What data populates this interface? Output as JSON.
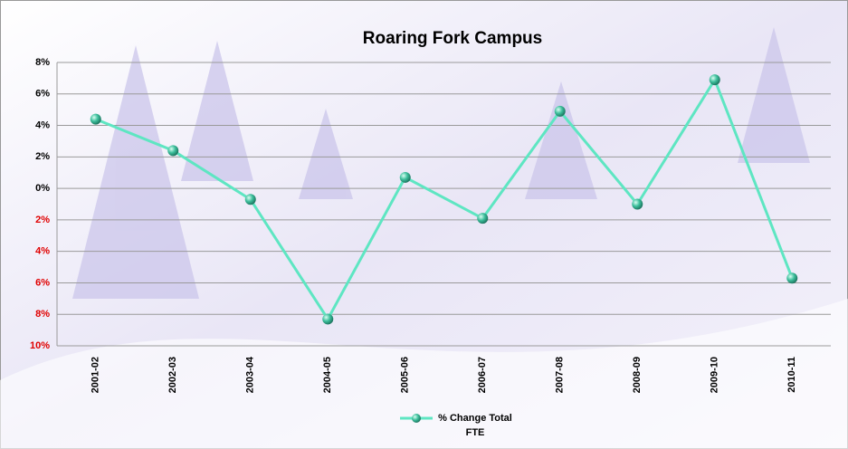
{
  "chart_data": {
    "type": "line",
    "title": "Roaring Fork Campus",
    "categories": [
      "2001-02",
      "2002-03",
      "2003-04",
      "2004-05",
      "2005-06",
      "2006-07",
      "2007-08",
      "2008-09",
      "2009-10",
      "2010-11"
    ],
    "series": [
      {
        "name": "% Change Total FTE",
        "color": "#5ee6c2",
        "values": [
          4.4,
          2.4,
          -0.7,
          -8.3,
          0.7,
          -1.9,
          4.9,
          -1.0,
          6.9,
          -5.7
        ]
      }
    ],
    "ylim": [
      -10,
      8
    ],
    "yticks": [
      {
        "value": 8,
        "label": "8%"
      },
      {
        "value": 6,
        "label": "6%"
      },
      {
        "value": 4,
        "label": "4%"
      },
      {
        "value": 2,
        "label": "2%"
      },
      {
        "value": 0,
        "label": "0%"
      },
      {
        "value": -2,
        "label": "2%"
      },
      {
        "value": -4,
        "label": "4%"
      },
      {
        "value": -6,
        "label": "6%"
      },
      {
        "value": -8,
        "label": "8%"
      },
      {
        "value": -10,
        "label": "10%"
      }
    ],
    "grid": true
  }
}
